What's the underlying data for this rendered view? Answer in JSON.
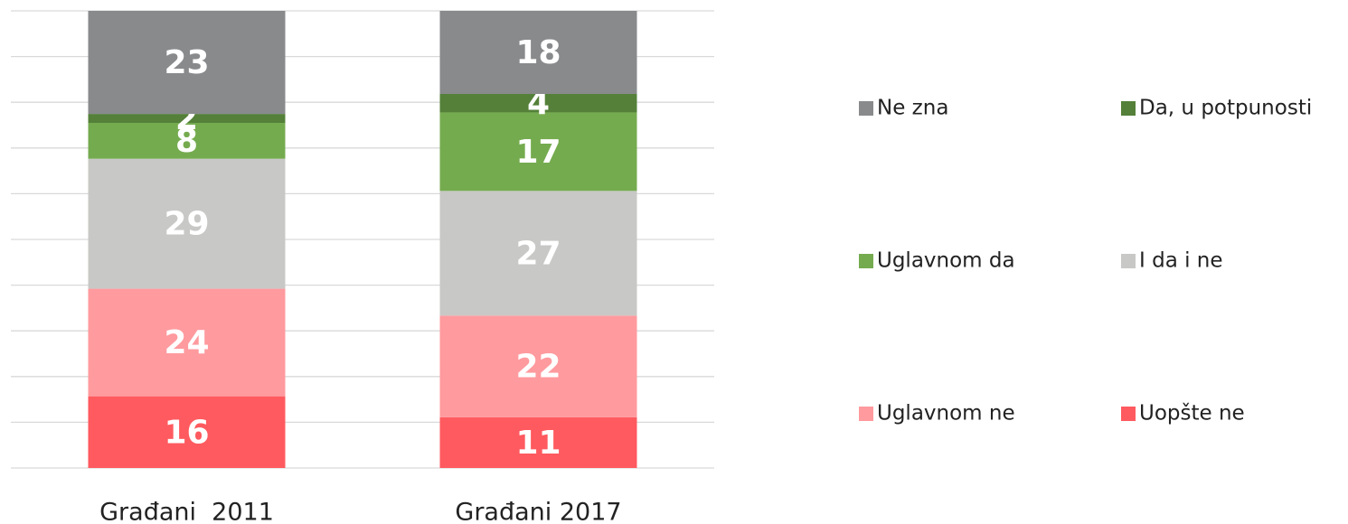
{
  "chart_data": {
    "type": "stacked_percent_bar",
    "categories": [
      "Građani  2011",
      "Građani 2017"
    ],
    "series": [
      {
        "name": "Uopšte ne",
        "color": "#ff5a5f",
        "values": [
          16,
          11
        ]
      },
      {
        "name": "Uglavnom ne",
        "color": "#ff9a9e",
        "values": [
          24,
          22
        ]
      },
      {
        "name": "I da i ne",
        "color": "#c8c8c6",
        "values": [
          29,
          27
        ]
      },
      {
        "name": "Uglavnom da",
        "color": "#75ab4f",
        "values": [
          8,
          17
        ]
      },
      {
        "name": "Da, u potpunosti",
        "color": "#548039",
        "values": [
          2,
          4
        ]
      },
      {
        "name": "Ne zna",
        "color": "#888a8c",
        "values": [
          23,
          18
        ]
      }
    ],
    "ylim": [
      0,
      100
    ],
    "yticks": [
      0,
      10,
      20,
      30,
      40,
      50,
      60,
      70,
      80,
      90,
      100
    ],
    "ytick_labels": false,
    "grid": true,
    "legend": "right"
  }
}
